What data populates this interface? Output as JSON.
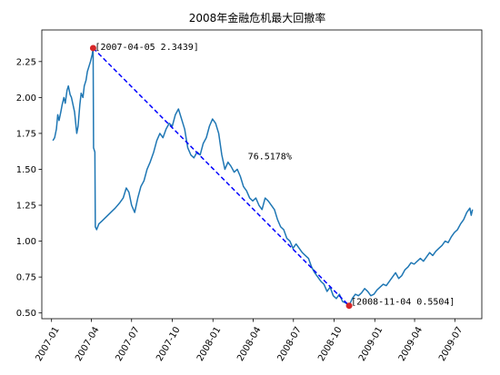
{
  "chart_data": {
    "type": "line",
    "title": "2008年金融危机最大回撤率",
    "xlabel": "",
    "ylabel": "",
    "xlim": [
      "2006-12-10",
      "2009-08-31"
    ],
    "ylim": [
      0.46,
      2.47
    ],
    "grid": false,
    "x_ticks": [
      "2007-01",
      "2007-04",
      "2007-07",
      "2007-10",
      "2008-01",
      "2008-04",
      "2008-07",
      "2008-10",
      "2009-01",
      "2009-04",
      "2009-07"
    ],
    "y_ticks": [
      "0.50",
      "0.75",
      "1.00",
      "1.25",
      "1.50",
      "1.75",
      "2.00",
      "2.25"
    ],
    "series": [
      {
        "color": "#1f77b4",
        "points": [
          [
            "2007-01-04",
            1.7
          ],
          [
            "2007-01-08",
            1.72
          ],
          [
            "2007-01-12",
            1.78
          ],
          [
            "2007-01-15",
            1.88
          ],
          [
            "2007-01-18",
            1.84
          ],
          [
            "2007-01-22",
            1.9
          ],
          [
            "2007-01-25",
            1.95
          ],
          [
            "2007-01-29",
            2.0
          ],
          [
            "2007-02-01",
            1.96
          ],
          [
            "2007-02-05",
            2.05
          ],
          [
            "2007-02-08",
            2.08
          ],
          [
            "2007-02-12",
            2.02
          ],
          [
            "2007-02-15",
            2.0
          ],
          [
            "2007-02-22",
            1.9
          ],
          [
            "2007-02-27",
            1.75
          ],
          [
            "2007-03-02",
            1.8
          ],
          [
            "2007-03-06",
            1.95
          ],
          [
            "2007-03-09",
            2.03
          ],
          [
            "2007-03-13",
            2.0
          ],
          [
            "2007-03-16",
            2.08
          ],
          [
            "2007-03-20",
            2.12
          ],
          [
            "2007-03-23",
            2.18
          ],
          [
            "2007-03-27",
            2.22
          ],
          [
            "2007-03-30",
            2.25
          ],
          [
            "2007-04-03",
            2.3
          ],
          [
            "2007-04-05",
            2.3439
          ],
          [
            "2007-04-06",
            1.65
          ],
          [
            "2007-04-09",
            1.62
          ],
          [
            "2007-04-10",
            1.1
          ],
          [
            "2007-04-13",
            1.08
          ],
          [
            "2007-04-18",
            1.12
          ],
          [
            "2007-04-25",
            1.14
          ],
          [
            "2007-05-05",
            1.17
          ],
          [
            "2007-05-15",
            1.2
          ],
          [
            "2007-05-25",
            1.23
          ],
          [
            "2007-06-05",
            1.27
          ],
          [
            "2007-06-12",
            1.3
          ],
          [
            "2007-06-19",
            1.37
          ],
          [
            "2007-06-25",
            1.34
          ],
          [
            "2007-07-01",
            1.25
          ],
          [
            "2007-07-08",
            1.2
          ],
          [
            "2007-07-15",
            1.3
          ],
          [
            "2007-07-22",
            1.38
          ],
          [
            "2007-07-29",
            1.42
          ],
          [
            "2007-08-05",
            1.5
          ],
          [
            "2007-08-12",
            1.55
          ],
          [
            "2007-08-20",
            1.62
          ],
          [
            "2007-08-27",
            1.7
          ],
          [
            "2007-09-03",
            1.75
          ],
          [
            "2007-09-10",
            1.72
          ],
          [
            "2007-09-17",
            1.78
          ],
          [
            "2007-09-24",
            1.82
          ],
          [
            "2007-10-01",
            1.8
          ],
          [
            "2007-10-08",
            1.88
          ],
          [
            "2007-10-15",
            1.92
          ],
          [
            "2007-10-22",
            1.85
          ],
          [
            "2007-10-29",
            1.78
          ],
          [
            "2007-11-05",
            1.65
          ],
          [
            "2007-11-12",
            1.6
          ],
          [
            "2007-11-19",
            1.58
          ],
          [
            "2007-11-26",
            1.62
          ],
          [
            "2007-12-03",
            1.6
          ],
          [
            "2007-12-10",
            1.68
          ],
          [
            "2007-12-17",
            1.72
          ],
          [
            "2007-12-24",
            1.8
          ],
          [
            "2007-12-31",
            1.85
          ],
          [
            "2008-01-07",
            1.82
          ],
          [
            "2008-01-14",
            1.75
          ],
          [
            "2008-01-21",
            1.6
          ],
          [
            "2008-01-28",
            1.5
          ],
          [
            "2008-02-04",
            1.55
          ],
          [
            "2008-02-11",
            1.52
          ],
          [
            "2008-02-18",
            1.48
          ],
          [
            "2008-02-25",
            1.5
          ],
          [
            "2008-03-03",
            1.45
          ],
          [
            "2008-03-10",
            1.38
          ],
          [
            "2008-03-17",
            1.35
          ],
          [
            "2008-03-24",
            1.3
          ],
          [
            "2008-03-31",
            1.28
          ],
          [
            "2008-04-07",
            1.3
          ],
          [
            "2008-04-14",
            1.25
          ],
          [
            "2008-04-21",
            1.22
          ],
          [
            "2008-04-28",
            1.3
          ],
          [
            "2008-05-05",
            1.28
          ],
          [
            "2008-05-12",
            1.25
          ],
          [
            "2008-05-19",
            1.22
          ],
          [
            "2008-05-26",
            1.15
          ],
          [
            "2008-06-02",
            1.1
          ],
          [
            "2008-06-09",
            1.08
          ],
          [
            "2008-06-16",
            1.02
          ],
          [
            "2008-06-23",
            1.0
          ],
          [
            "2008-06-30",
            0.95
          ],
          [
            "2008-07-07",
            0.98
          ],
          [
            "2008-07-14",
            0.95
          ],
          [
            "2008-07-21",
            0.92
          ],
          [
            "2008-07-28",
            0.9
          ],
          [
            "2008-08-04",
            0.88
          ],
          [
            "2008-08-11",
            0.82
          ],
          [
            "2008-08-18",
            0.78
          ],
          [
            "2008-08-25",
            0.75
          ],
          [
            "2008-09-01",
            0.72
          ],
          [
            "2008-09-08",
            0.7
          ],
          [
            "2008-09-15",
            0.65
          ],
          [
            "2008-09-22",
            0.68
          ],
          [
            "2008-09-29",
            0.62
          ],
          [
            "2008-10-06",
            0.6
          ],
          [
            "2008-10-13",
            0.63
          ],
          [
            "2008-10-20",
            0.58
          ],
          [
            "2008-10-27",
            0.57
          ],
          [
            "2008-11-04",
            0.5504
          ],
          [
            "2008-11-11",
            0.6
          ],
          [
            "2008-11-18",
            0.63
          ],
          [
            "2008-11-25",
            0.62
          ],
          [
            "2008-12-02",
            0.64
          ],
          [
            "2008-12-09",
            0.67
          ],
          [
            "2008-12-16",
            0.65
          ],
          [
            "2008-12-23",
            0.62
          ],
          [
            "2008-12-30",
            0.63
          ],
          [
            "2009-01-06",
            0.66
          ],
          [
            "2009-01-13",
            0.68
          ],
          [
            "2009-01-20",
            0.7
          ],
          [
            "2009-01-27",
            0.69
          ],
          [
            "2009-02-03",
            0.72
          ],
          [
            "2009-02-10",
            0.75
          ],
          [
            "2009-02-17",
            0.78
          ],
          [
            "2009-02-24",
            0.74
          ],
          [
            "2009-03-03",
            0.76
          ],
          [
            "2009-03-10",
            0.8
          ],
          [
            "2009-03-17",
            0.82
          ],
          [
            "2009-03-24",
            0.85
          ],
          [
            "2009-03-31",
            0.84
          ],
          [
            "2009-04-07",
            0.86
          ],
          [
            "2009-04-14",
            0.88
          ],
          [
            "2009-04-21",
            0.86
          ],
          [
            "2009-04-28",
            0.89
          ],
          [
            "2009-05-05",
            0.92
          ],
          [
            "2009-05-12",
            0.9
          ],
          [
            "2009-05-19",
            0.93
          ],
          [
            "2009-05-26",
            0.95
          ],
          [
            "2009-06-02",
            0.97
          ],
          [
            "2009-06-09",
            1.0
          ],
          [
            "2009-06-16",
            0.99
          ],
          [
            "2009-06-23",
            1.03
          ],
          [
            "2009-06-30",
            1.06
          ],
          [
            "2009-07-07",
            1.08
          ],
          [
            "2009-07-14",
            1.12
          ],
          [
            "2009-07-21",
            1.15
          ],
          [
            "2009-07-28",
            1.2
          ],
          [
            "2009-08-04",
            1.23
          ],
          [
            "2009-08-07",
            1.18
          ],
          [
            "2009-08-10",
            1.22
          ]
        ]
      }
    ],
    "drawdown": {
      "peak": {
        "date": "2007-04-05",
        "value": 2.3439,
        "label": "[2007-04-05 2.3439]"
      },
      "trough": {
        "date": "2008-11-04",
        "value": 0.5504,
        "label": "[2008-11-04 0.5504]"
      },
      "line_color": "#0000ff",
      "marker_color": "#d62728",
      "rate_label": "76.5178%",
      "rate_at": [
        "2008-03-20",
        1.57
      ]
    }
  }
}
